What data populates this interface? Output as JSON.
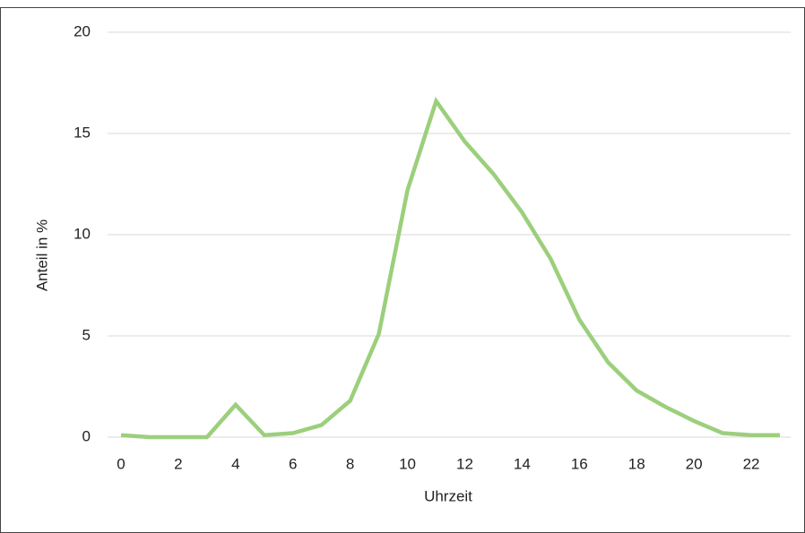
{
  "chart_data": {
    "type": "line",
    "x_label": "Uhrzeit",
    "y_label": "Anteil in %",
    "x": [
      0,
      1,
      2,
      3,
      4,
      5,
      6,
      7,
      8,
      9,
      10,
      11,
      12,
      13,
      14,
      15,
      16,
      17,
      18,
      19,
      20,
      21,
      22,
      23
    ],
    "series": [
      {
        "name": "Anteil",
        "color": "#9ccf7c",
        "values": [
          0.1,
          0,
          0,
          0,
          1.6,
          0.1,
          0.2,
          0.6,
          1.8,
          5.1,
          12.2,
          16.6,
          14.6,
          13.0,
          11.1,
          8.8,
          5.8,
          3.7,
          2.3,
          1.5,
          0.8,
          0.2,
          0.1,
          0.1
        ]
      }
    ],
    "xlim": [
      0,
      23
    ],
    "xticks": [
      0,
      2,
      4,
      6,
      8,
      10,
      12,
      14,
      16,
      18,
      20,
      22
    ],
    "ylim": [
      0,
      20
    ],
    "yticks": [
      0,
      5,
      10,
      15,
      20
    ],
    "grid": true,
    "legend": false
  }
}
